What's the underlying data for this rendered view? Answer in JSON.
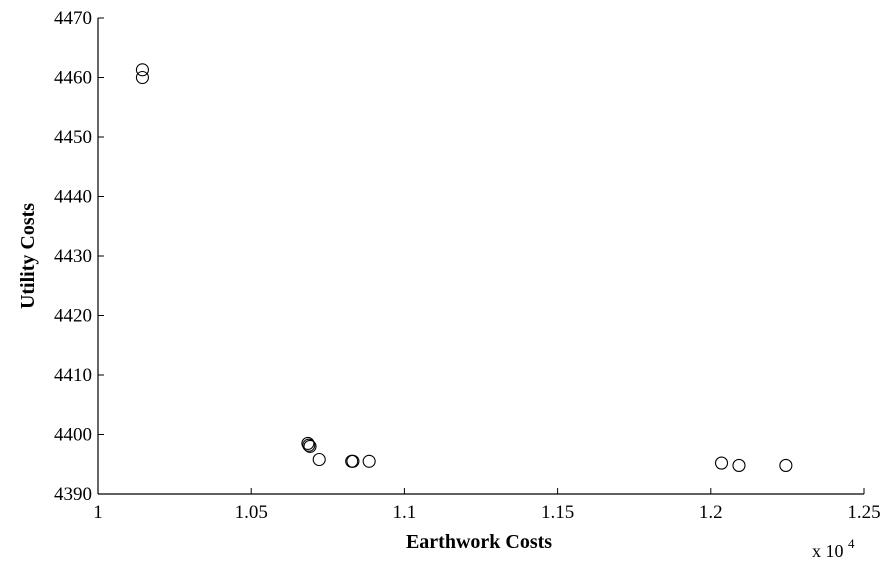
{
  "chart_data": {
    "type": "scatter",
    "xlabel": "Earthwork Costs",
    "ylabel": "Utility Costs",
    "x_multiplier": {
      "base": "x 10",
      "exponent": "4"
    },
    "xlim": [
      1.0,
      1.25
    ],
    "ylim": [
      4390,
      4470
    ],
    "x_ticks": [
      1.0,
      1.05,
      1.1,
      1.15,
      1.2,
      1.25
    ],
    "x_tick_labels": [
      "1",
      "1.05",
      "1.1",
      "1.15",
      "1.2",
      "1.25"
    ],
    "y_ticks": [
      4390,
      4400,
      4410,
      4420,
      4430,
      4440,
      4450,
      4460,
      4470
    ],
    "y_tick_labels": [
      "4390",
      "4400",
      "4410",
      "4420",
      "4430",
      "4440",
      "4450",
      "4460",
      "4470"
    ],
    "grid": false,
    "marker": "open-circle",
    "marker_color": "#000000",
    "series": [
      {
        "points": [
          {
            "x": 1.0145,
            "y": 4461.3
          },
          {
            "x": 1.0145,
            "y": 4460.0
          },
          {
            "x": 1.0685,
            "y": 4398.5
          },
          {
            "x": 1.0688,
            "y": 4398.2
          },
          {
            "x": 1.0692,
            "y": 4398.0
          },
          {
            "x": 1.0722,
            "y": 4395.8
          },
          {
            "x": 1.0828,
            "y": 4395.5
          },
          {
            "x": 1.0832,
            "y": 4395.5
          },
          {
            "x": 1.0885,
            "y": 4395.5
          },
          {
            "x": 1.2035,
            "y": 4395.2
          },
          {
            "x": 1.2092,
            "y": 4394.8
          },
          {
            "x": 1.2245,
            "y": 4394.8
          }
        ]
      }
    ]
  }
}
